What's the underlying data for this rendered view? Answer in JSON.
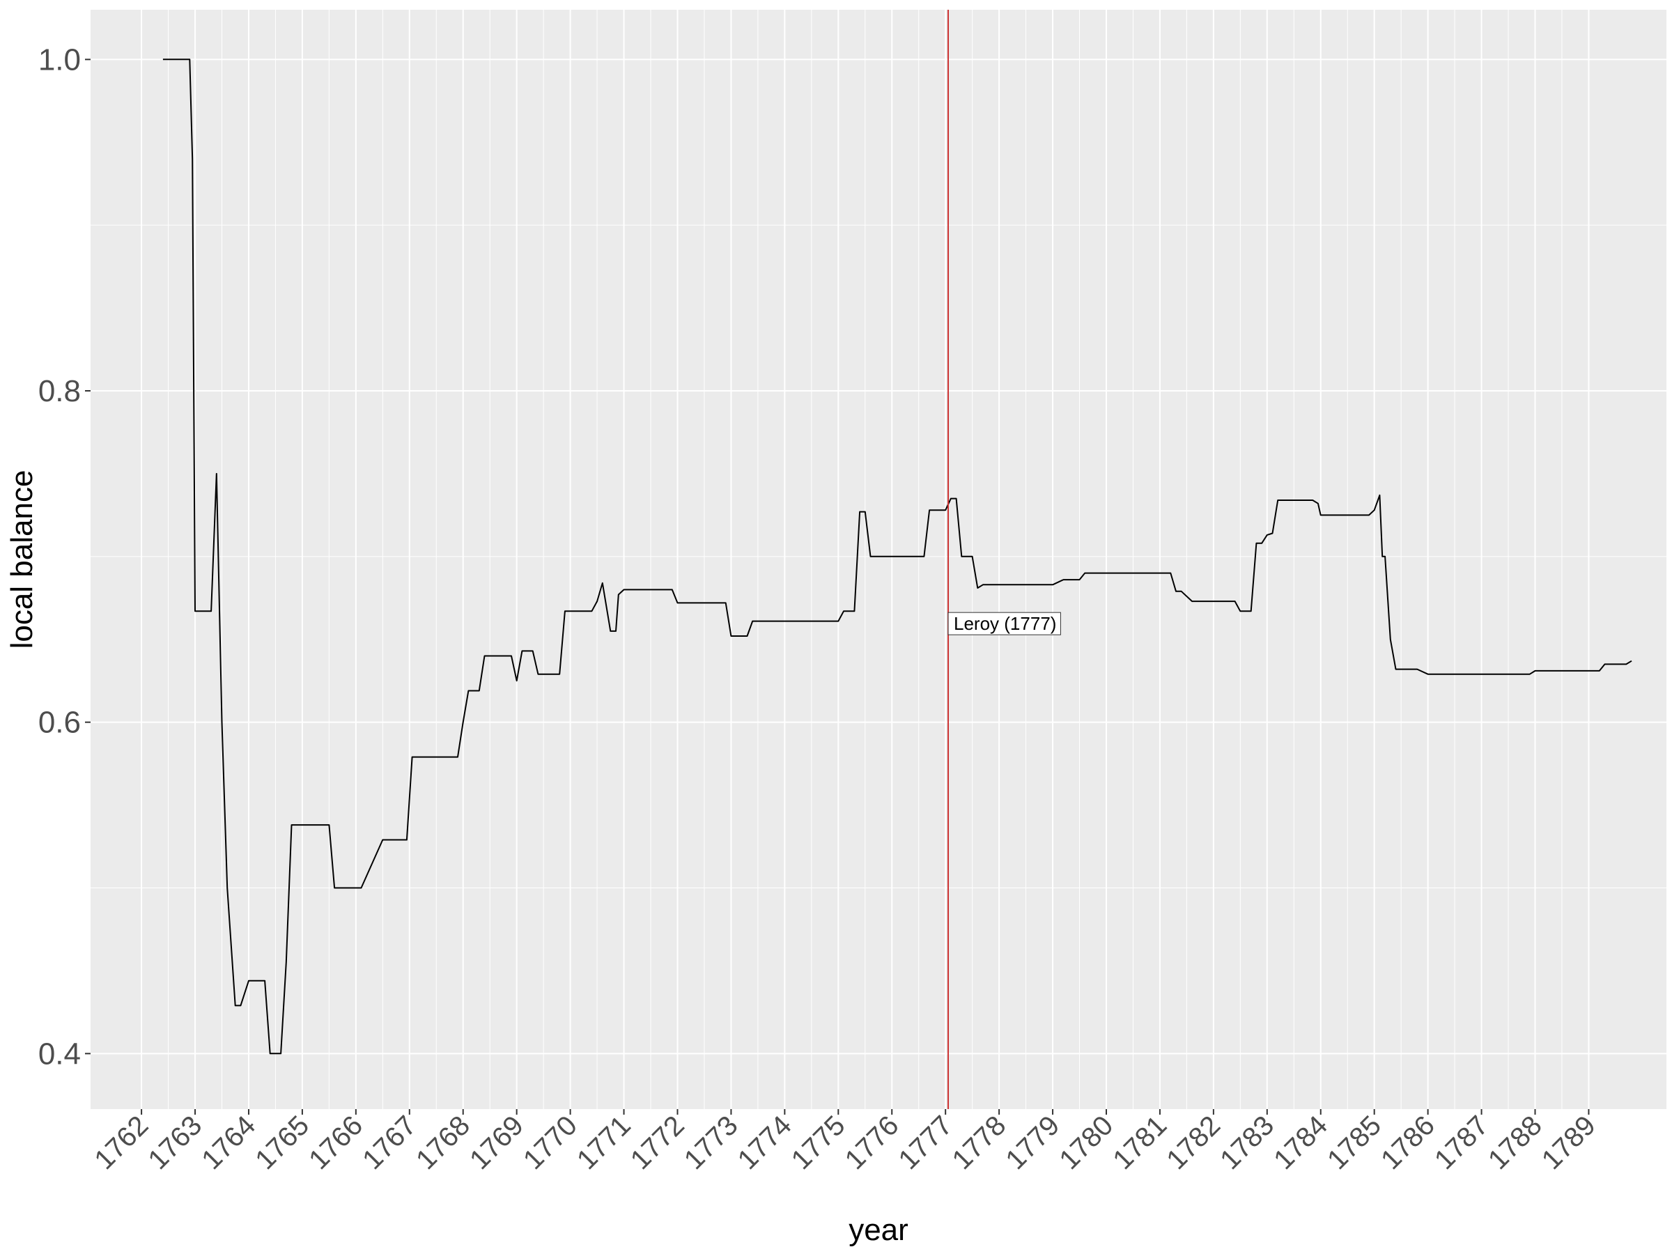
{
  "chart_data": {
    "type": "line",
    "xlabel": "year",
    "ylabel": "local balance",
    "xlim": [
      1761.05,
      1790.45
    ],
    "ylim": [
      0.3665,
      1.03
    ],
    "grid": true,
    "x_ticks": [
      1762,
      1763,
      1764,
      1765,
      1766,
      1767,
      1768,
      1769,
      1770,
      1771,
      1772,
      1773,
      1774,
      1775,
      1776,
      1777,
      1778,
      1779,
      1780,
      1781,
      1782,
      1783,
      1784,
      1785,
      1786,
      1787,
      1788,
      1789
    ],
    "x_tick_labels": [
      "1762",
      "1763",
      "1764",
      "1765",
      "1766",
      "1767",
      "1768",
      "1769",
      "1770",
      "1771",
      "1772",
      "1773",
      "1774",
      "1775",
      "1776",
      "1777",
      "1778",
      "1779",
      "1780",
      "1781",
      "1782",
      "1783",
      "1784",
      "1785",
      "1786",
      "1787",
      "1788",
      "1789"
    ],
    "y_ticks": [
      0.4,
      0.6,
      0.8,
      1.0
    ],
    "y_tick_labels": [
      "0.4",
      "0.6",
      "0.8",
      "1.0"
    ],
    "colors": {
      "line": "#000000",
      "vline": "#cc3333",
      "panel": "#ebebeb",
      "grid": "#ffffff"
    },
    "series": [
      {
        "x": [
          1762.4,
          1762.6,
          1762.9,
          1762.95,
          1763.0,
          1763.1,
          1763.3,
          1763.4,
          1763.5,
          1763.6,
          1763.75,
          1763.85,
          1764.0,
          1764.1,
          1764.3,
          1764.4,
          1764.6,
          1764.7,
          1764.8,
          1765.0,
          1765.5,
          1765.6,
          1766.0,
          1766.1,
          1766.5,
          1766.95,
          1767.05,
          1767.5,
          1767.9,
          1768.0,
          1768.1,
          1768.3,
          1768.4,
          1768.9,
          1769.0,
          1769.1,
          1769.3,
          1769.4,
          1769.8,
          1769.9,
          1770.4,
          1770.5,
          1770.6,
          1770.75,
          1770.85,
          1770.9,
          1771.0,
          1771.9,
          1772.0,
          1772.5,
          1772.9,
          1773.0,
          1773.3,
          1773.4,
          1773.9,
          1774.5,
          1775.0,
          1775.1,
          1775.3,
          1775.4,
          1775.5,
          1775.6,
          1775.8,
          1776.5,
          1776.6,
          1776.7,
          1776.9,
          1777.0,
          1777.1,
          1777.2,
          1777.3,
          1777.5,
          1777.6,
          1777.7,
          1778.0,
          1778.5,
          1779.0,
          1779.2,
          1779.5,
          1779.6,
          1780.0,
          1780.5,
          1781.0,
          1781.2,
          1781.3,
          1781.4,
          1781.6,
          1782.0,
          1782.4,
          1782.5,
          1782.7,
          1782.8,
          1782.9,
          1783.0,
          1783.1,
          1783.2,
          1783.5,
          1783.85,
          1783.95,
          1784.0,
          1784.5,
          1784.9,
          1785.0,
          1785.1,
          1785.15,
          1785.2,
          1785.3,
          1785.4,
          1785.5,
          1785.8,
          1786.0,
          1786.5,
          1787.0,
          1787.5,
          1787.9,
          1788.0,
          1788.5,
          1789.0,
          1789.2,
          1789.3,
          1789.5,
          1789.7,
          1789.8
        ],
        "y": [
          1.0,
          1.0,
          1.0,
          0.94,
          0.667,
          0.667,
          0.667,
          0.75,
          0.6,
          0.5,
          0.429,
          0.429,
          0.444,
          0.444,
          0.444,
          0.4,
          0.4,
          0.455,
          0.538,
          0.538,
          0.538,
          0.5,
          0.5,
          0.5,
          0.529,
          0.529,
          0.579,
          0.579,
          0.579,
          0.6,
          0.619,
          0.619,
          0.64,
          0.64,
          0.625,
          0.643,
          0.643,
          0.629,
          0.629,
          0.667,
          0.667,
          0.673,
          0.684,
          0.655,
          0.655,
          0.677,
          0.68,
          0.68,
          0.672,
          0.672,
          0.672,
          0.652,
          0.652,
          0.661,
          0.661,
          0.661,
          0.661,
          0.667,
          0.667,
          0.727,
          0.727,
          0.7,
          0.7,
          0.7,
          0.7,
          0.728,
          0.728,
          0.728,
          0.735,
          0.735,
          0.7,
          0.7,
          0.681,
          0.683,
          0.683,
          0.683,
          0.683,
          0.686,
          0.686,
          0.69,
          0.69,
          0.69,
          0.69,
          0.69,
          0.679,
          0.679,
          0.673,
          0.673,
          0.673,
          0.667,
          0.667,
          0.708,
          0.708,
          0.713,
          0.714,
          0.734,
          0.734,
          0.734,
          0.732,
          0.725,
          0.725,
          0.725,
          0.728,
          0.737,
          0.7,
          0.7,
          0.65,
          0.632,
          0.632,
          0.632,
          0.629,
          0.629,
          0.629,
          0.629,
          0.629,
          0.631,
          0.631,
          0.631,
          0.631,
          0.635,
          0.635,
          0.635,
          0.637
        ]
      }
    ],
    "vline": {
      "x": 1777.05
    },
    "annotations": [
      {
        "text": "Leroy (1777)",
        "x": 1777.05,
        "y": 0.6595
      }
    ]
  }
}
